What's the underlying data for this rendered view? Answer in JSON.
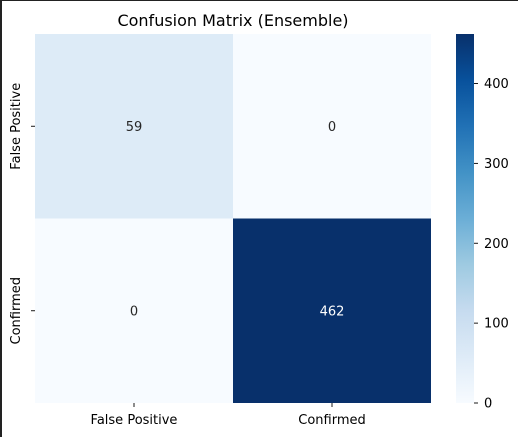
{
  "chart_data": {
    "type": "heatmap",
    "title": "Confusion Matrix (Ensemble)",
    "xlabel": "",
    "ylabel": "",
    "x_categories": [
      "False Positive",
      "Confirmed"
    ],
    "y_categories": [
      "False Positive",
      "Confirmed"
    ],
    "values": [
      [
        59,
        0
      ],
      [
        0,
        462
      ]
    ],
    "colormap": "Blues",
    "color_low": "#f7fbff",
    "color_high": "#08306b",
    "vmin": 0,
    "vmax": 462,
    "colorbar": {
      "ticks": [
        0,
        100,
        200,
        300,
        400
      ]
    },
    "annotation_colors": {
      "on_light": "#262626",
      "on_dark": "#ffffff"
    },
    "grid": false
  }
}
